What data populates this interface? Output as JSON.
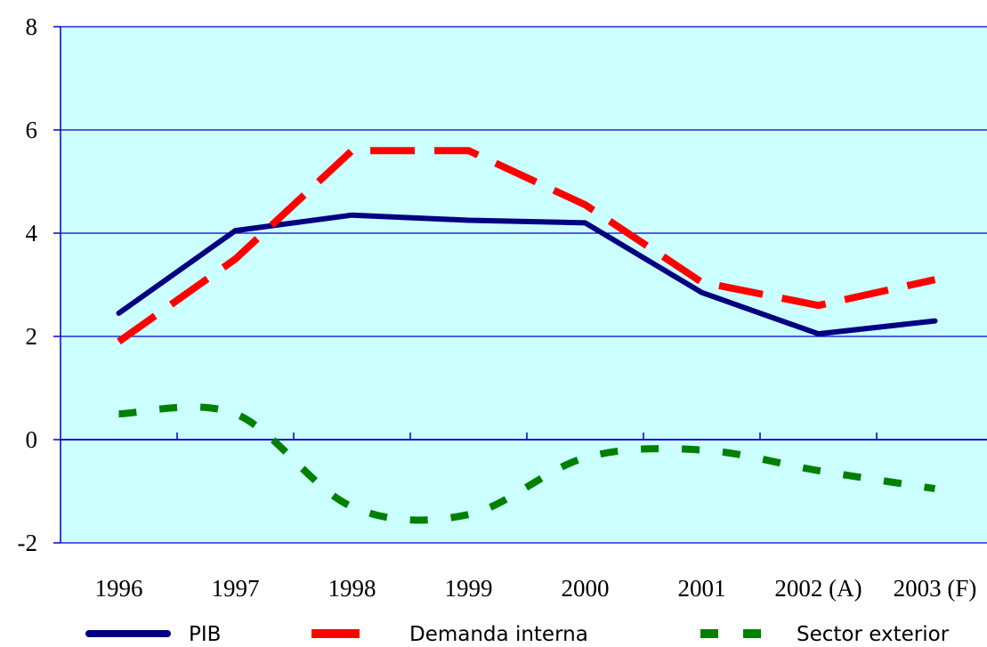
{
  "chart_data": {
    "type": "line",
    "title": "",
    "xlabel": "",
    "ylabel": "",
    "categories": [
      "1996",
      "1997",
      "1998",
      "1999",
      "2000",
      "2001",
      "2002 (A)",
      "2003 (F)"
    ],
    "y_ticks": [
      "-2",
      "0",
      "2",
      "4",
      "6",
      "8"
    ],
    "ylim": [
      -2,
      8
    ],
    "grid": "horizontal",
    "legend_position": "bottom",
    "plot_background": "#ccffff",
    "axis_color": "#0000cc",
    "series": [
      {
        "name": "PIB",
        "color": "#000080",
        "style": "solid",
        "values": [
          2.45,
          4.05,
          4.35,
          4.25,
          4.2,
          2.85,
          2.05,
          2.3
        ]
      },
      {
        "name": "Demanda interna",
        "color": "#ff0000",
        "style": "dashed",
        "values": [
          1.9,
          3.5,
          5.6,
          5.6,
          4.55,
          3.05,
          2.6,
          3.1
        ]
      },
      {
        "name": "Sector exterior",
        "color": "#008000",
        "style": "dotted",
        "values": [
          0.5,
          0.5,
          -1.3,
          -1.45,
          -0.35,
          -0.2,
          -0.6,
          -0.95
        ]
      }
    ]
  }
}
